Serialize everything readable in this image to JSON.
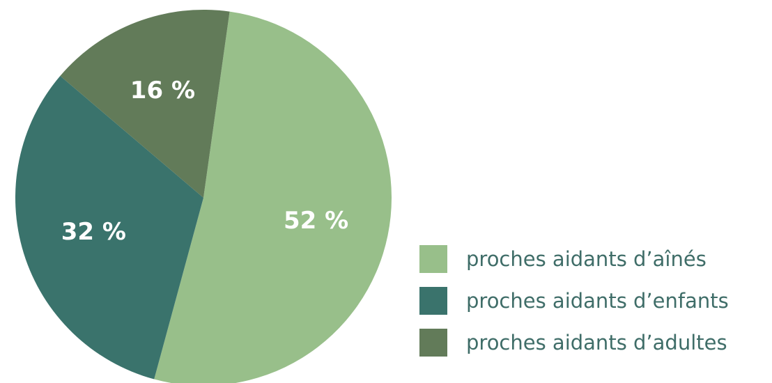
{
  "chart_data": {
    "type": "pie",
    "title": "",
    "series": [
      {
        "name": "proches aidants d’aînés",
        "value": 52,
        "label": "52 %",
        "color": "#98bf8a"
      },
      {
        "name": "proches aidants d’enfants",
        "value": 32,
        "label": "32 %",
        "color": "#3a736c"
      },
      {
        "name": "proches aidants d’adultes",
        "value": 16,
        "label": "16 %",
        "color": "#627b59"
      }
    ],
    "start_angle_deg": 8,
    "direction": "clockwise",
    "legend_placement": "bottom-right"
  }
}
